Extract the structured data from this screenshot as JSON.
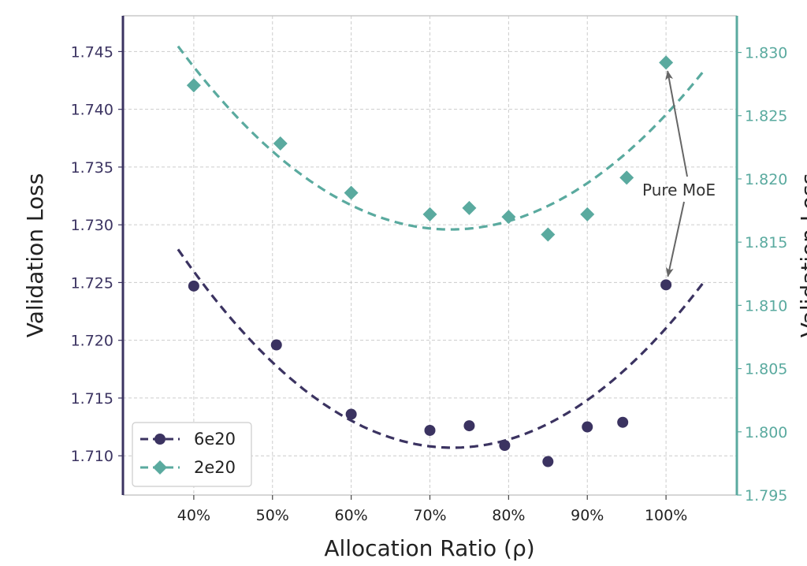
{
  "chart_data": {
    "type": "scatter",
    "xlabel": "Allocation Ratio (ρ)",
    "ylabel_left": "Validation Loss",
    "ylabel_right": "Validation Loss",
    "x_ticks": [
      "40%",
      "50%",
      "60%",
      "70%",
      "80%",
      "90%",
      "100%"
    ],
    "x_tick_values": [
      40,
      50,
      60,
      70,
      80,
      90,
      100
    ],
    "xlim": [
      31,
      109
    ],
    "left_ylim": [
      1.7066,
      1.7481
    ],
    "left_ticks": [
      "1.710",
      "1.715",
      "1.720",
      "1.725",
      "1.730",
      "1.735",
      "1.740",
      "1.745"
    ],
    "left_tick_values": [
      1.71,
      1.715,
      1.72,
      1.725,
      1.73,
      1.735,
      1.74,
      1.745
    ],
    "right_ylim": [
      1.795,
      1.8329
    ],
    "right_ticks": [
      "1.795",
      "1.800",
      "1.805",
      "1.810",
      "1.815",
      "1.820",
      "1.825",
      "1.830"
    ],
    "right_tick_values": [
      1.795,
      1.8,
      1.805,
      1.81,
      1.815,
      1.82,
      1.825,
      1.83
    ],
    "grid": true,
    "legend_position": "lower-left",
    "series": [
      {
        "name": "6e20",
        "axis": "left",
        "marker": "circle",
        "color": "#3b3361",
        "points": [
          {
            "x": 40,
            "y": 1.7247
          },
          {
            "x": 50.5,
            "y": 1.7196
          },
          {
            "x": 60,
            "y": 1.7136
          },
          {
            "x": 70,
            "y": 1.7122
          },
          {
            "x": 75,
            "y": 1.7126
          },
          {
            "x": 79.5,
            "y": 1.7109
          },
          {
            "x": 85,
            "y": 1.7095
          },
          {
            "x": 90,
            "y": 1.7125
          },
          {
            "x": 94.5,
            "y": 1.7129
          },
          {
            "x": 100,
            "y": 1.7248
          }
        ],
        "fit": {
          "x_min": 38,
          "x_max": 105,
          "vertex_x": 72.9,
          "vertex_y": 1.7107,
          "a": 1.41e-05
        }
      },
      {
        "name": "2e20",
        "axis": "right",
        "marker": "diamond",
        "color": "#5aaa9f",
        "points": [
          {
            "x": 40,
            "y": 1.8274
          },
          {
            "x": 51,
            "y": 1.8228
          },
          {
            "x": 60,
            "y": 1.8189
          },
          {
            "x": 70,
            "y": 1.8172
          },
          {
            "x": 75,
            "y": 1.8177
          },
          {
            "x": 80,
            "y": 1.817
          },
          {
            "x": 85,
            "y": 1.8156
          },
          {
            "x": 90,
            "y": 1.8172
          },
          {
            "x": 95,
            "y": 1.8201
          },
          {
            "x": 100,
            "y": 1.8292
          }
        ],
        "fit": {
          "x_min": 38,
          "x_max": 105,
          "vertex_x": 72.6,
          "vertex_y": 1.816,
          "a": 1.21e-05
        }
      }
    ],
    "annotation": {
      "text": "Pure MoE",
      "targets": [
        {
          "series": "2e20",
          "x": 100,
          "y": 1.8292
        },
        {
          "series": "6e20",
          "x": 100,
          "y": 1.7248
        }
      ]
    }
  },
  "colors": {
    "series_1": "#3b3361",
    "series_2": "#5aaa9f",
    "grid": "#cccccc",
    "frame": "#c8c8c8"
  }
}
